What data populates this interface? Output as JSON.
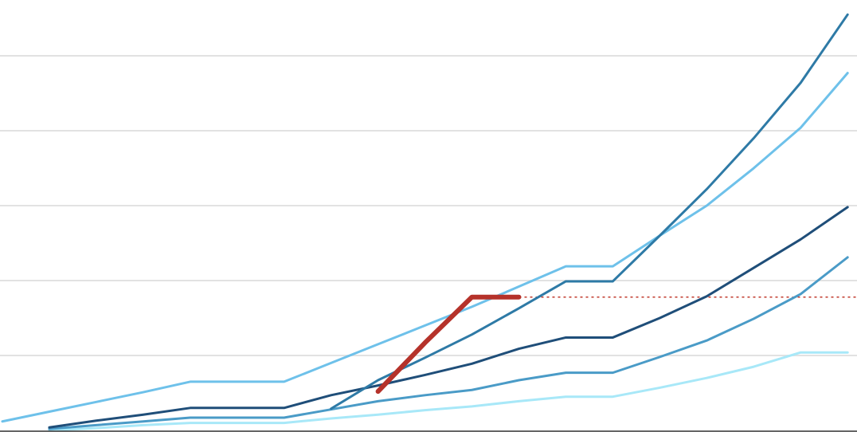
{
  "chart_data": {
    "type": "line",
    "x": [
      0,
      1,
      2,
      3,
      4,
      5,
      6,
      7,
      8,
      9,
      10,
      11,
      12,
      13,
      14,
      15,
      16,
      17,
      18
    ],
    "xlim": [
      -0.05,
      18.2
    ],
    "ylim": [
      0,
      5.745
    ],
    "yticks": [
      1,
      2,
      3,
      4,
      5
    ],
    "grid": true,
    "series": [
      {
        "color": "#6ec1ea",
        "width": 3,
        "values": [
          0.12,
          0.25,
          0.38,
          0.51,
          0.65,
          0.65,
          0.65,
          0.9,
          1.15,
          1.4,
          1.65,
          1.92,
          2.19,
          2.19,
          2.6,
          3.0,
          3.5,
          4.04,
          4.77
        ]
      },
      {
        "color": "#a8e8f8",
        "width": 3,
        "values": [
          null,
          0,
          0.03,
          0.07,
          0.1,
          0.1,
          0.1,
          0.16,
          0.21,
          0.27,
          0.32,
          0.39,
          0.45,
          0.45,
          0.57,
          0.7,
          0.85,
          1.04,
          1.04
        ]
      },
      {
        "color": "#4a9bc7",
        "width": 3,
        "values": [
          null,
          0.02,
          0.07,
          0.12,
          0.17,
          0.17,
          0.17,
          0.28,
          0.39,
          0.47,
          0.54,
          0.67,
          0.77,
          0.77,
          0.98,
          1.2,
          1.49,
          1.82,
          2.31
        ]
      },
      {
        "color": "#1f4e79",
        "width": 3,
        "values": [
          null,
          0.04,
          0.13,
          0.21,
          0.3,
          0.3,
          0.3,
          0.47,
          0.6,
          0.74,
          0.89,
          1.09,
          1.24,
          1.24,
          1.5,
          1.79,
          2.17,
          2.55,
          2.98
        ]
      },
      {
        "color": "#2e7aa6",
        "width": 3,
        "values": [
          null,
          null,
          null,
          null,
          null,
          null,
          null,
          0.29,
          0.67,
          0.97,
          1.28,
          1.63,
          1.99,
          1.99,
          2.6,
          3.22,
          3.9,
          4.64,
          5.55
        ]
      },
      {
        "color": "#b5322a",
        "width": 6,
        "values": [
          null,
          null,
          null,
          null,
          null,
          null,
          null,
          null,
          0.52,
          1.17,
          1.78,
          1.78,
          null,
          null,
          null,
          null,
          null,
          null,
          null
        ]
      }
    ],
    "reference_line": {
      "value": 1.78,
      "from_x": 11,
      "color": "#c0392b",
      "style": "dotted"
    }
  }
}
